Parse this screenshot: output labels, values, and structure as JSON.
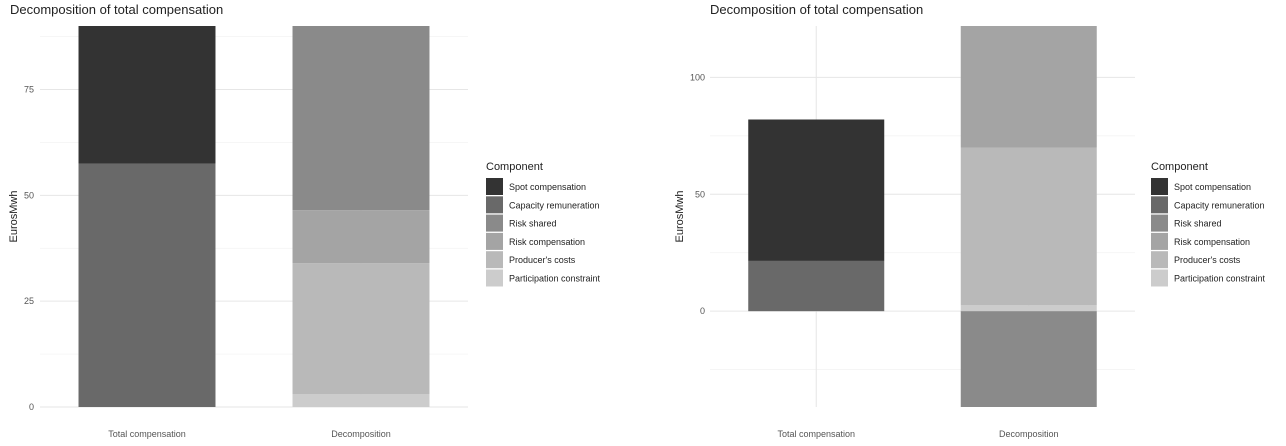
{
  "chart_data": [
    {
      "type": "bar",
      "stacked": true,
      "title": "Decomposition of total compensation",
      "xlabel": "",
      "ylabel": "EurosMwh",
      "categories": [
        "Total compensation",
        "Decomposition"
      ],
      "ylim": [
        0,
        90
      ],
      "yticks": [
        0,
        25,
        50,
        75
      ],
      "grid": true,
      "legend_position": "right",
      "legend_title": "Component",
      "series": [
        {
          "name": "Spot compensation",
          "color": "#333333",
          "values": [
            32.5,
            0
          ]
        },
        {
          "name": "Capacity remuneration",
          "color": "#696969",
          "values": [
            57.5,
            0
          ]
        },
        {
          "name": "Risk shared",
          "color": "#8a8a8a",
          "values": [
            0,
            43.5
          ]
        },
        {
          "name": "Risk compensation",
          "color": "#a4a4a4",
          "values": [
            0,
            12.5
          ]
        },
        {
          "name": "Producer's costs",
          "color": "#b9b9b9",
          "values": [
            0,
            31.0
          ]
        },
        {
          "name": "Participation constraint",
          "color": "#cccccc",
          "values": [
            0,
            3.0
          ]
        }
      ]
    },
    {
      "type": "bar",
      "stacked": true,
      "title": "Decomposition of total compensation",
      "xlabel": "",
      "ylabel": "EurosMwh",
      "categories": [
        "Total compensation",
        "Decomposition"
      ],
      "ylim": [
        -41,
        122
      ],
      "yticks": [
        0,
        50,
        100
      ],
      "grid": true,
      "legend_position": "right",
      "legend_title": "Component",
      "series": [
        {
          "name": "Spot compensation",
          "color": "#333333",
          "values": [
            60.5,
            0
          ]
        },
        {
          "name": "Capacity remuneration",
          "color": "#696969",
          "values": [
            21.5,
            0
          ]
        },
        {
          "name": "Risk shared",
          "color": "#8a8a8a",
          "values": [
            0,
            -41
          ]
        },
        {
          "name": "Risk compensation",
          "color": "#a4a4a4",
          "values": [
            0,
            52
          ]
        },
        {
          "name": "Producer's costs",
          "color": "#b9b9b9",
          "values": [
            0,
            67.5
          ]
        },
        {
          "name": "Participation constraint",
          "color": "#cccccc",
          "values": [
            0,
            2.5
          ]
        }
      ]
    }
  ]
}
